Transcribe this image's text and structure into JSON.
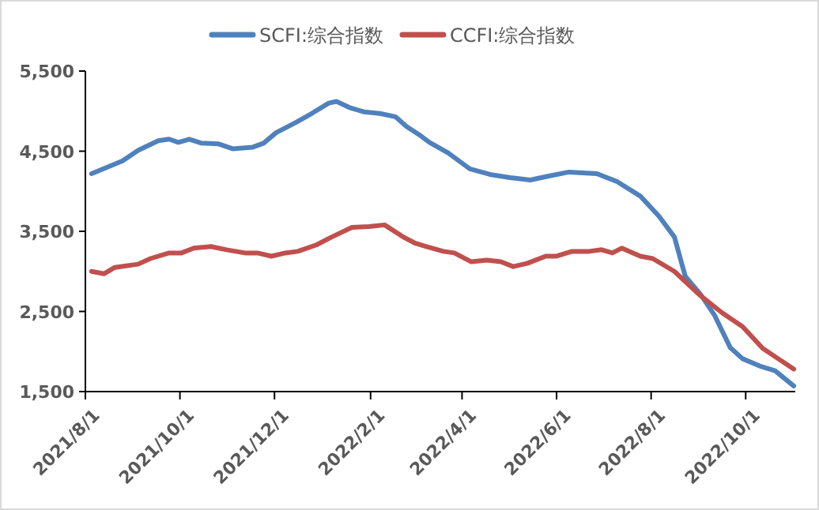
{
  "chart_data": {
    "type": "line",
    "legend": "top",
    "xlim": [
      "2021-08-01",
      "2022-11-02"
    ],
    "ylim": [
      1500,
      5500
    ],
    "yticks": [
      {
        "value": 1500,
        "label": "1,500"
      },
      {
        "value": 2500,
        "label": "2,500"
      },
      {
        "value": 3500,
        "label": "3,500"
      },
      {
        "value": 4500,
        "label": "4,500"
      },
      {
        "value": 5500,
        "label": "5,500"
      }
    ],
    "xticks": [
      {
        "value": "2021-08-01",
        "label": "2021/8/1"
      },
      {
        "value": "2021-10-01",
        "label": "2021/10/1"
      },
      {
        "value": "2021-12-01",
        "label": "2021/12/1"
      },
      {
        "value": "2022-02-01",
        "label": "2022/2/1"
      },
      {
        "value": "2022-04-01",
        "label": "2022/4/1"
      },
      {
        "value": "2022-06-01",
        "label": "2022/6/1"
      },
      {
        "value": "2022-08-01",
        "label": "2022/8/1"
      },
      {
        "value": "2022-10-01",
        "label": "2022/10/1"
      }
    ],
    "series": [
      {
        "name": "SCFI:综合指数",
        "color": "#4f81bd",
        "x": [
          "2021-08-05",
          "2021-08-25",
          "2021-09-04",
          "2021-09-17",
          "2021-09-24",
          "2021-09-30",
          "2021-10-07",
          "2021-10-15",
          "2021-10-26",
          "2021-11-04",
          "2021-11-17",
          "2021-11-24",
          "2021-12-02",
          "2021-12-15",
          "2021-12-25",
          "2022-01-05",
          "2022-01-10",
          "2022-01-19",
          "2022-01-28",
          "2022-02-07",
          "2022-02-17",
          "2022-02-24",
          "2022-03-04",
          "2022-03-11",
          "2022-03-23",
          "2022-04-06",
          "2022-04-19",
          "2022-05-02",
          "2022-05-15",
          "2022-05-27",
          "2022-06-09",
          "2022-06-27",
          "2022-07-10",
          "2022-07-25",
          "2022-08-06",
          "2022-08-16",
          "2022-08-23",
          "2022-09-02",
          "2022-09-11",
          "2022-09-21",
          "2022-09-29",
          "2022-10-10",
          "2022-10-20",
          "2022-11-01"
        ],
        "values": [
          4220,
          4380,
          4510,
          4630,
          4650,
          4610,
          4650,
          4600,
          4590,
          4530,
          4550,
          4600,
          4730,
          4860,
          4970,
          5100,
          5120,
          5040,
          4990,
          4970,
          4930,
          4810,
          4710,
          4610,
          4480,
          4280,
          4210,
          4170,
          4140,
          4190,
          4240,
          4220,
          4120,
          3940,
          3690,
          3430,
          2940,
          2710,
          2450,
          2050,
          1910,
          1820,
          1760,
          1570
        ]
      },
      {
        "name": "CCFI:综合指数",
        "color": "#c0504d",
        "x": [
          "2021-08-05",
          "2021-08-13",
          "2021-08-20",
          "2021-09-04",
          "2021-09-12",
          "2021-09-24",
          "2021-10-02",
          "2021-10-10",
          "2021-10-21",
          "2021-10-31",
          "2021-11-12",
          "2021-11-20",
          "2021-11-29",
          "2021-12-08",
          "2021-12-16",
          "2021-12-28",
          "2022-01-07",
          "2022-01-20",
          "2022-01-31",
          "2022-02-10",
          "2022-02-22",
          "2022-03-02",
          "2022-03-09",
          "2022-03-20",
          "2022-03-27",
          "2022-04-07",
          "2022-04-17",
          "2022-04-26",
          "2022-05-04",
          "2022-05-13",
          "2022-05-25",
          "2022-06-01",
          "2022-06-11",
          "2022-06-22",
          "2022-06-30",
          "2022-07-07",
          "2022-07-13",
          "2022-07-25",
          "2022-08-02",
          "2022-08-16",
          "2022-09-01",
          "2022-09-16",
          "2022-09-29",
          "2022-10-12",
          "2022-10-22",
          "2022-11-01"
        ],
        "values": [
          3000,
          2970,
          3050,
          3090,
          3160,
          3230,
          3230,
          3290,
          3310,
          3270,
          3230,
          3230,
          3190,
          3230,
          3250,
          3330,
          3430,
          3550,
          3560,
          3580,
          3430,
          3350,
          3310,
          3250,
          3230,
          3120,
          3140,
          3120,
          3060,
          3100,
          3190,
          3190,
          3250,
          3250,
          3270,
          3230,
          3290,
          3190,
          3160,
          3000,
          2710,
          2480,
          2310,
          2040,
          1910,
          1780
        ]
      }
    ]
  }
}
